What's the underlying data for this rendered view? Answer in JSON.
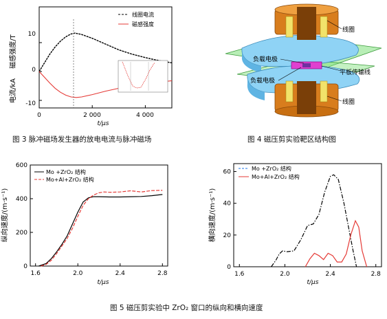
{
  "fig3": {
    "caption": "图 3 脉冲磁场发生器的放电电流与脉冲磁场",
    "ylabel_top": "磁感强度/T",
    "ylabel_bottom": "电流/kA",
    "xlabel": "t/μs",
    "legend": [
      "线圈电流",
      "磁感强度"
    ],
    "yticks": [
      "10",
      "0",
      "-10"
    ],
    "xticks": [
      "0",
      "2 000",
      "4 000"
    ]
  },
  "fig4": {
    "caption": "图 4 磁压剪实验靶区结构图",
    "labels": {
      "coil_top": "线圈",
      "load_top": "负载电极",
      "plate_line": "平板传输线",
      "load_bottom": "负载电极",
      "coil_bottom": "线圈"
    }
  },
  "fig5": {
    "caption": "图 5 磁压剪实验中 ZrO₂ 窗口的纵向和横向速度",
    "left": {
      "ylabel": "纵向速度/(m·s⁻¹)",
      "xlabel": "t/μs",
      "xticks": [
        "1.6",
        "2.0",
        "2.4",
        "2.8"
      ],
      "yticks": [
        "0",
        "200",
        "400",
        "600"
      ],
      "legend": [
        "Mo +ZrO₂ 结构",
        "Mo+Al+ZrO₂ 结构"
      ]
    },
    "right": {
      "ylabel": "横向速度/(m·s⁻¹)",
      "xlabel": "t/μs",
      "xticks": [
        "1.6",
        "2.0",
        "2.4",
        "2.8"
      ],
      "yticks": [
        "0",
        "20",
        "40",
        "60"
      ],
      "legend": [
        "Mo +ZrO₂ 结构",
        "Mo+Al+ZrO₂ 结构"
      ]
    }
  },
  "chart_data": [
    {
      "type": "line",
      "xlabel": "t/μs",
      "xlim": [
        0,
        5000
      ],
      "series": [
        {
          "name": "线圈电流",
          "color": "#000000",
          "x": [
            0,
            200,
            400,
            600,
            800,
            1000,
            1200,
            1350,
            1600,
            2000,
            2500,
            3000,
            3500,
            4000,
            4500,
            5000
          ],
          "y": [
            0,
            3,
            6,
            8.5,
            10.5,
            12,
            13,
            13.3,
            12.8,
            11.5,
            9.5,
            7.5,
            6,
            4.8,
            3.8,
            3
          ]
        },
        {
          "name": "磁感强度",
          "color": "#e53935",
          "x": [
            0,
            200,
            400,
            600,
            800,
            1000,
            1200,
            1400,
            1600,
            2000,
            2500,
            3000,
            3500,
            4000,
            4500,
            5000
          ],
          "y": [
            0,
            -2,
            -4,
            -5.8,
            -7.2,
            -8.2,
            -8.8,
            -9,
            -8.8,
            -8,
            -6.8,
            -5.8,
            -5,
            -4.3,
            -3.7,
            -3.2
          ]
        }
      ]
    },
    {
      "type": "line",
      "xlabel": "t/μs",
      "ylabel": "纵向速度/(m·s⁻¹)",
      "xlim": [
        1.55,
        2.85
      ],
      "ylim": [
        0,
        600
      ],
      "series": [
        {
          "name": "Mo +ZrO₂ 结构",
          "color": "#000000",
          "x": [
            1.63,
            1.7,
            1.75,
            1.8,
            1.85,
            1.9,
            1.95,
            2.0,
            2.05,
            2.1,
            2.15,
            2.2,
            2.3,
            2.4,
            2.5,
            2.6,
            2.7,
            2.8
          ],
          "y": [
            0,
            15,
            45,
            85,
            130,
            180,
            250,
            320,
            380,
            405,
            412,
            412,
            410,
            410,
            412,
            413,
            418,
            425
          ]
        },
        {
          "name": "Mo+Al+ZrO₂ 结构",
          "color": "#e53935",
          "x": [
            1.65,
            1.7,
            1.75,
            1.8,
            1.85,
            1.9,
            1.95,
            2.0,
            2.05,
            2.1,
            2.15,
            2.2,
            2.25,
            2.3,
            2.4,
            2.5,
            2.6,
            2.7,
            2.8
          ],
          "y": [
            0,
            10,
            35,
            75,
            120,
            165,
            225,
            295,
            360,
            400,
            422,
            435,
            440,
            438,
            440,
            447,
            440,
            448,
            450
          ]
        }
      ]
    },
    {
      "type": "line",
      "xlabel": "t/μs",
      "ylabel": "横向速度/(m·s⁻¹)",
      "xlim": [
        1.55,
        2.85
      ],
      "ylim": [
        0,
        65
      ],
      "series": [
        {
          "name": "Mo +ZrO₂ 结构",
          "color": "#000000",
          "x": [
            1.88,
            1.92,
            1.95,
            1.98,
            2.02,
            2.08,
            2.14,
            2.2,
            2.25,
            2.3,
            2.35,
            2.4,
            2.43,
            2.47,
            2.52,
            2.56,
            2.6,
            2.63
          ],
          "y": [
            0,
            4,
            8,
            10,
            9.5,
            10,
            17,
            26,
            27,
            33,
            47,
            57,
            58,
            55,
            40,
            25,
            10,
            0
          ]
        },
        {
          "name": "Mo+Al+ZrO₂ 结构",
          "color": "#e53935",
          "x": [
            2.18,
            2.22,
            2.26,
            2.3,
            2.34,
            2.38,
            2.42,
            2.46,
            2.5,
            2.54,
            2.58,
            2.62,
            2.65,
            2.68,
            2.72
          ],
          "y": [
            0,
            5,
            8.5,
            7,
            4.5,
            8.5,
            7,
            3,
            3,
            8,
            20,
            29,
            25,
            10,
            0
          ]
        }
      ]
    }
  ]
}
